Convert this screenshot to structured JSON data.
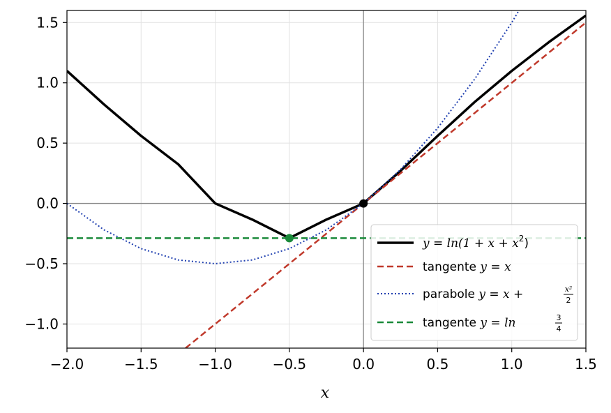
{
  "chart_data": {
    "type": "line",
    "xlabel": "x",
    "ylabel": "",
    "xlim": [
      -2.0,
      1.5
    ],
    "ylim": [
      -1.2,
      1.6
    ],
    "grid": true,
    "legend_placement": "lower-right",
    "x_ticks": [
      -2.0,
      -1.5,
      -1.0,
      -0.5,
      0.0,
      0.5,
      1.0,
      1.5
    ],
    "y_ticks": [
      -1.0,
      -0.5,
      0.0,
      0.5,
      1.0,
      1.5
    ],
    "x_tick_labels": [
      "−2.0",
      "−1.5",
      "−1.0",
      "−0.5",
      "0.0",
      "0.5",
      "1.0",
      "1.5"
    ],
    "y_tick_labels": [
      "−1.0",
      "−0.5",
      "0.0",
      "0.5",
      "1.0",
      "1.5"
    ],
    "series": [
      {
        "name": "y = ln(1 + x + x²)",
        "style": "solid",
        "color": "#000000",
        "x": [
          -2.0,
          -1.75,
          -1.5,
          -1.25,
          -1.0,
          -0.75,
          -0.5,
          -0.25,
          0.0,
          0.25,
          0.5,
          0.75,
          1.0,
          1.25,
          1.5
        ],
        "y": [
          1.099,
          0.821,
          0.56,
          0.325,
          0.0,
          -0.134,
          -0.288,
          -0.134,
          0.0,
          0.27,
          0.56,
          0.841,
          1.099,
          1.337,
          1.558
        ]
      },
      {
        "name": "tangente y = x",
        "style": "dashed",
        "color": "#c0392b",
        "x": [
          -1.2,
          1.5
        ],
        "y": [
          -1.2,
          1.5
        ]
      },
      {
        "name": "parabole y = x + x²/2",
        "style": "dotted",
        "color": "#2040b0",
        "x": [
          -2.0,
          -1.75,
          -1.5,
          -1.25,
          -1.0,
          -0.75,
          -0.5,
          -0.25,
          0.0,
          0.25,
          0.5,
          0.75,
          1.0,
          1.1,
          1.15
        ],
        "y": [
          0.0,
          -0.219,
          -0.375,
          -0.469,
          -0.5,
          -0.469,
          -0.375,
          -0.219,
          0.0,
          0.281,
          0.625,
          1.031,
          1.5,
          1.705,
          1.811
        ]
      },
      {
        "name": "tangente y = ln 3/4",
        "style": "dashed",
        "color": "#1a8a3a",
        "x": [
          -2.0,
          1.5
        ],
        "y": [
          -0.288,
          -0.288
        ]
      }
    ],
    "points": [
      {
        "x": -0.5,
        "y": -0.288,
        "color": "#1a8a3a"
      },
      {
        "x": 0.0,
        "y": 0.0,
        "color": "#000000"
      }
    ]
  },
  "legend": {
    "curve": {
      "prefix": "y = ln(1 + x + x",
      "sup": "2",
      "suffix": ")"
    },
    "tangent": {
      "text": "tangente ",
      "math": "y = x"
    },
    "parabola": {
      "text": "parabole ",
      "math": "y = x + ",
      "num": "x²",
      "den": "2"
    },
    "horizontal": {
      "text": "tangente ",
      "math": "y = ln ",
      "num": "3",
      "den": "4"
    }
  }
}
